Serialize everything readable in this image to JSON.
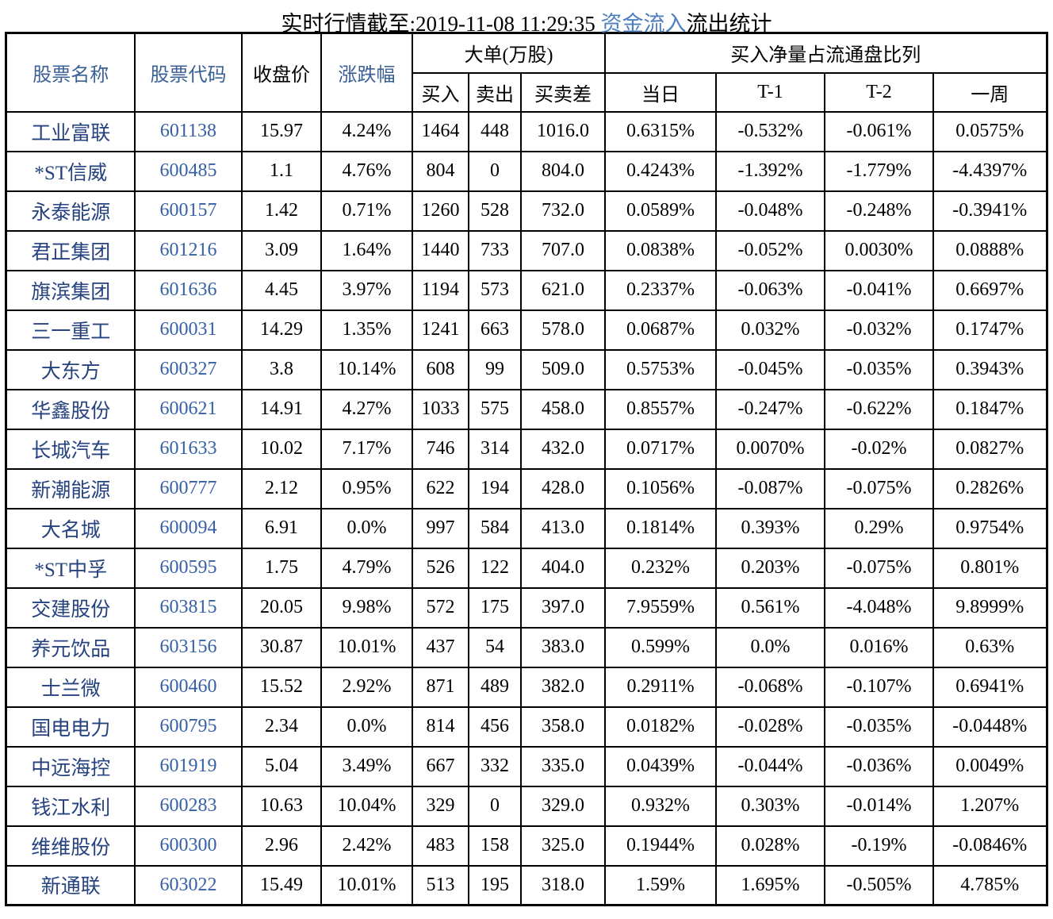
{
  "title": {
    "prefix": "实时行情截至:2019-11-08 11:29:35 ",
    "highlight": "资金流入",
    "suffix": "流出统计"
  },
  "chart_data": {
    "type": "table",
    "title": "实时行情截至:2019-11-08 11:29:35 资金流入流出统计",
    "headers": {
      "stock_name": "股票名称",
      "stock_code": "股票代码",
      "close_price": "收盘价",
      "change_pct": "涨跌幅",
      "large_orders_group": "大单(万股)",
      "buy": "买入",
      "sell": "卖出",
      "buy_sell_diff": "买卖差",
      "net_buy_ratio_group": "买入净量占流通盘比列",
      "today": "当日",
      "t_minus_1": "T-1",
      "t_minus_2": "T-2",
      "one_week": "一周"
    },
    "rows": [
      [
        "工业富联",
        "601138",
        "15.97",
        "4.24%",
        "1464",
        "448",
        "1016.0",
        "0.6315%",
        "-0.532%",
        "-0.061%",
        "0.0575%"
      ],
      [
        "*ST信威",
        "600485",
        "1.1",
        "4.76%",
        "804",
        "0",
        "804.0",
        "0.4243%",
        "-1.392%",
        "-1.779%",
        "-4.4397%"
      ],
      [
        "永泰能源",
        "600157",
        "1.42",
        "0.71%",
        "1260",
        "528",
        "732.0",
        "0.0589%",
        "-0.048%",
        "-0.248%",
        "-0.3941%"
      ],
      [
        "君正集团",
        "601216",
        "3.09",
        "1.64%",
        "1440",
        "733",
        "707.0",
        "0.0838%",
        "-0.052%",
        "0.0030%",
        "0.0888%"
      ],
      [
        "旗滨集团",
        "601636",
        "4.45",
        "3.97%",
        "1194",
        "573",
        "621.0",
        "0.2337%",
        "-0.063%",
        "-0.041%",
        "0.6697%"
      ],
      [
        "三一重工",
        "600031",
        "14.29",
        "1.35%",
        "1241",
        "663",
        "578.0",
        "0.0687%",
        "0.032%",
        "-0.032%",
        "0.1747%"
      ],
      [
        "大东方",
        "600327",
        "3.8",
        "10.14%",
        "608",
        "99",
        "509.0",
        "0.5753%",
        "-0.045%",
        "-0.035%",
        "0.3943%"
      ],
      [
        "华鑫股份",
        "600621",
        "14.91",
        "4.27%",
        "1033",
        "575",
        "458.0",
        "0.8557%",
        "-0.247%",
        "-0.622%",
        "0.1847%"
      ],
      [
        "长城汽车",
        "601633",
        "10.02",
        "7.17%",
        "746",
        "314",
        "432.0",
        "0.0717%",
        "0.0070%",
        "-0.02%",
        "0.0827%"
      ],
      [
        "新潮能源",
        "600777",
        "2.12",
        "0.95%",
        "622",
        "194",
        "428.0",
        "0.1056%",
        "-0.087%",
        "-0.075%",
        "0.2826%"
      ],
      [
        "大名城",
        "600094",
        "6.91",
        "0.0%",
        "997",
        "584",
        "413.0",
        "0.1814%",
        "0.393%",
        "0.29%",
        "0.9754%"
      ],
      [
        "*ST中孚",
        "600595",
        "1.75",
        "4.79%",
        "526",
        "122",
        "404.0",
        "0.232%",
        "0.203%",
        "-0.075%",
        "0.801%"
      ],
      [
        "交建股份",
        "603815",
        "20.05",
        "9.98%",
        "572",
        "175",
        "397.0",
        "7.9559%",
        "0.561%",
        "-4.048%",
        "9.8999%"
      ],
      [
        "养元饮品",
        "603156",
        "30.87",
        "10.01%",
        "437",
        "54",
        "383.0",
        "0.599%",
        "0.0%",
        "0.016%",
        "0.63%"
      ],
      [
        "士兰微",
        "600460",
        "15.52",
        "2.92%",
        "871",
        "489",
        "382.0",
        "0.2911%",
        "-0.068%",
        "-0.107%",
        "0.6941%"
      ],
      [
        "国电电力",
        "600795",
        "2.34",
        "0.0%",
        "814",
        "456",
        "358.0",
        "0.0182%",
        "-0.028%",
        "-0.035%",
        "-0.0448%"
      ],
      [
        "中远海控",
        "601919",
        "5.04",
        "3.49%",
        "667",
        "332",
        "335.0",
        "0.0439%",
        "-0.044%",
        "-0.036%",
        "0.0049%"
      ],
      [
        "钱江水利",
        "600283",
        "10.63",
        "10.04%",
        "329",
        "0",
        "329.0",
        "0.932%",
        "0.303%",
        "-0.014%",
        "1.207%"
      ],
      [
        "维维股份",
        "600300",
        "2.96",
        "2.42%",
        "483",
        "158",
        "325.0",
        "0.1944%",
        "0.028%",
        "-0.19%",
        "-0.0846%"
      ],
      [
        "新通联",
        "603022",
        "15.49",
        "10.01%",
        "513",
        "195",
        "318.0",
        "1.59%",
        "1.695%",
        "-0.505%",
        "4.785%"
      ]
    ]
  },
  "colors": {
    "bg": "#ffffff",
    "border": "#000000",
    "text": "#000000",
    "title_blue": "#4d7fbe",
    "header_blue": "#3a5f96",
    "name_blue": "#26427f",
    "code_blue": "#3560a8"
  }
}
